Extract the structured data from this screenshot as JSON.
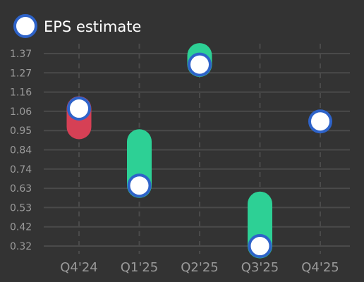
{
  "chart_data": {
    "type": "scatter",
    "title": "",
    "xlabel": "",
    "ylabel": "",
    "legend": {
      "label": "EPS estimate",
      "placement": "top-left"
    },
    "categories": [
      "Q4'24",
      "Q1'25",
      "Q2'25",
      "Q3'25",
      "Q4'25"
    ],
    "y_ticks": [
      "1.37",
      "1.27",
      "1.16",
      "1.06",
      "0.95",
      "0.84",
      "0.74",
      "0.63",
      "0.53",
      "0.42",
      "0.32"
    ],
    "ylim": [
      0.32,
      1.37
    ],
    "grid": true,
    "series": [
      {
        "name": "EPS estimate",
        "values": [
          1.07,
          0.65,
          1.31,
          0.32,
          1.0
        ]
      },
      {
        "values": [
          0.97,
          0.89,
          1.36,
          0.55,
          null
        ]
      }
    ],
    "colors": {
      "background": "#333333",
      "grid": "#4a4a4a",
      "marker_fill": "#ffffff",
      "marker_stroke": "#2e63c9",
      "beat": "#2dd095",
      "miss": "#d64055",
      "tick_text": "#9a9a9a",
      "legend_text": "#ffffff"
    }
  }
}
